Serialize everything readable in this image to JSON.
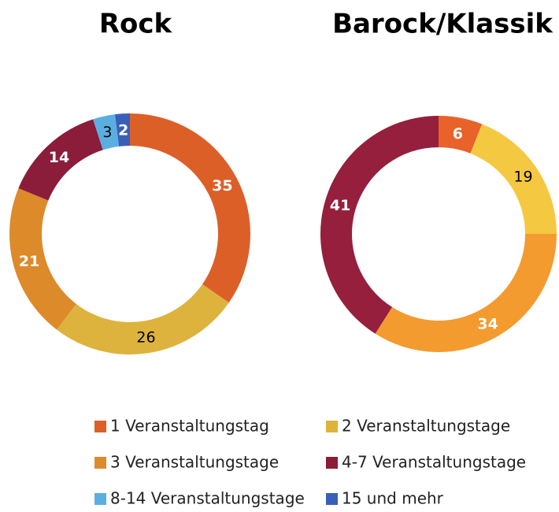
{
  "chart_data": [
    {
      "type": "donut",
      "title": "Rock",
      "categories": [
        "1 Veranstaltungstag",
        "2 Veranstaltungstage",
        "3 Veranstaltungstage",
        "4-7 Veranstaltungstage",
        "8-14 Veranstaltungstage",
        "15 und mehr"
      ],
      "values": [
        35,
        26,
        21,
        14,
        3,
        2
      ],
      "colors": [
        "#dc5f28",
        "#ddb33d",
        "#dd8a2a",
        "#8b1c3a",
        "#5aafe0",
        "#3a5fb8"
      ],
      "label_colors": [
        "#ffffff",
        "#000000",
        "#ffffff",
        "#ffffff",
        "#000000",
        "#ffffff"
      ]
    },
    {
      "type": "donut",
      "title": "Barock/Klassik",
      "categories": [
        "1 Veranstaltungstag",
        "2 Veranstaltungstage",
        "3 Veranstaltungstage",
        "4-7 Veranstaltungstage"
      ],
      "values": [
        6,
        19,
        34,
        41
      ],
      "colors": [
        "#e8622a",
        "#f5c842",
        "#f39b2f",
        "#951f3c"
      ],
      "label_colors": [
        "#ffffff",
        "#000000",
        "#ffffff",
        "#ffffff"
      ]
    }
  ]
}
